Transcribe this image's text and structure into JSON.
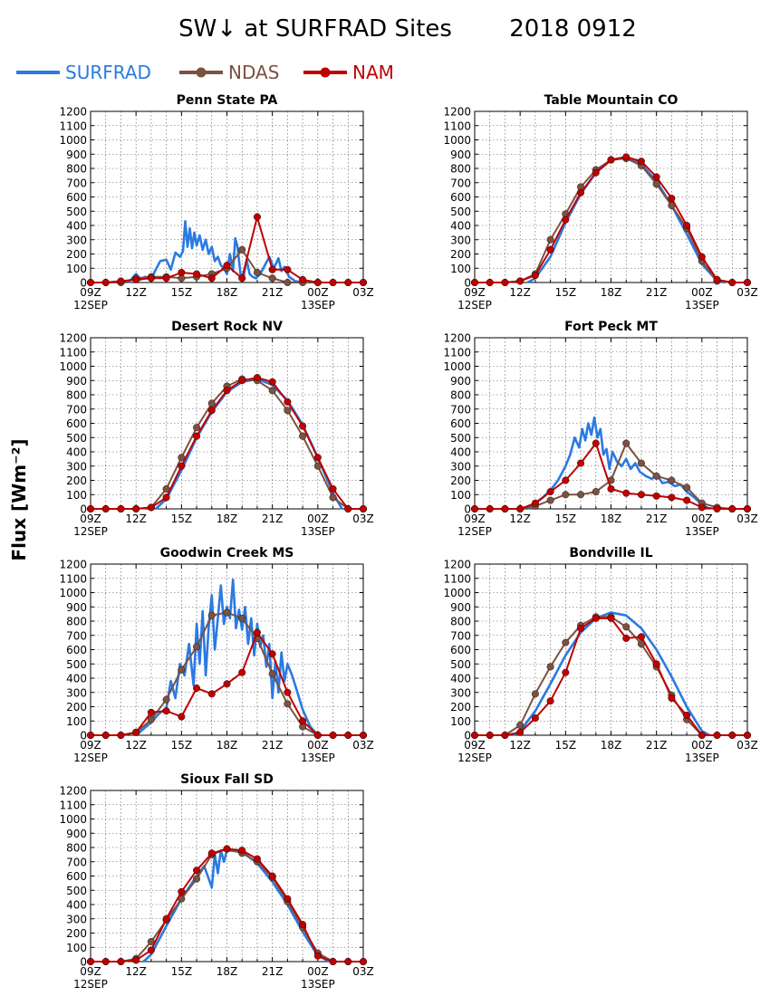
{
  "header": {
    "title": "SW↓ at SURFRAD Sites",
    "date": "2018 0912"
  },
  "y_label": "Flux [Wm⁻²]",
  "legend": [
    {
      "name": "SURFRAD",
      "color": "#2a7ae2",
      "marker": false
    },
    {
      "name": "NDAS",
      "color": "#7b5240",
      "marker": true
    },
    {
      "name": "NAM",
      "color": "#c00000",
      "marker": true
    }
  ],
  "x_ticks": [
    "09Z",
    "12Z",
    "15Z",
    "18Z",
    "21Z",
    "00Z",
    "03Z"
  ],
  "x_subticks": {
    "09Z": "12SEP",
    "00Z": "13SEP"
  },
  "y_ticks": [
    0,
    100,
    200,
    300,
    400,
    500,
    600,
    700,
    800,
    900,
    1000,
    1100,
    1200
  ],
  "chart_data": [
    {
      "type": "line",
      "title": "Penn State PA",
      "xlim": [
        9,
        27
      ],
      "ylim": [
        0,
        1200
      ],
      "x_unit": "hours UTC from 12SEP 00Z",
      "series": [
        {
          "name": "SURFRAD",
          "x": [
            11.5,
            12.0,
            12.3,
            12.6,
            13.0,
            13.3,
            13.6,
            14.0,
            14.3,
            14.6,
            14.9,
            15.1,
            15.25,
            15.4,
            15.55,
            15.7,
            15.85,
            16.0,
            16.2,
            16.4,
            16.6,
            16.8,
            17.0,
            17.2,
            17.4,
            17.6,
            17.8,
            18.0,
            18.2,
            18.4,
            18.55,
            18.7,
            18.9,
            19.1,
            19.3,
            19.5,
            19.7,
            19.9,
            20.2,
            20.5,
            20.8,
            21.1,
            21.4,
            21.6,
            21.8,
            22.1,
            22.5,
            23.0
          ],
          "y": [
            0,
            60,
            20,
            40,
            25,
            90,
            150,
            160,
            90,
            210,
            180,
            220,
            430,
            250,
            380,
            240,
            350,
            260,
            330,
            230,
            300,
            200,
            250,
            150,
            180,
            120,
            100,
            60,
            200,
            80,
            310,
            250,
            60,
            40,
            160,
            60,
            40,
            30,
            60,
            120,
            180,
            100,
            170,
            80,
            110,
            40,
            10,
            0
          ]
        },
        {
          "name": "NDAS",
          "x": [
            9,
            10,
            11,
            12,
            13,
            14,
            15,
            16,
            17,
            18,
            19,
            20,
            21,
            22,
            23,
            24,
            25,
            26,
            27
          ],
          "y": [
            0,
            0,
            0,
            30,
            40,
            40,
            30,
            40,
            60,
            100,
            230,
            70,
            30,
            0,
            0,
            0,
            0,
            0,
            0
          ]
        },
        {
          "name": "NAM",
          "x": [
            9,
            10,
            11,
            12,
            13,
            14,
            15,
            16,
            17,
            18,
            19,
            20,
            21,
            22,
            23,
            24,
            25,
            26,
            27
          ],
          "y": [
            0,
            0,
            10,
            20,
            30,
            30,
            70,
            60,
            30,
            120,
            30,
            460,
            90,
            90,
            20,
            0,
            0,
            0,
            0
          ]
        }
      ]
    },
    {
      "type": "line",
      "title": "Table Mountain CO",
      "xlim": [
        9,
        27
      ],
      "ylim": [
        0,
        1200
      ],
      "x_unit": "hours UTC from 12SEP 00Z",
      "series": [
        {
          "name": "SURFRAD",
          "x": [
            12.5,
            13,
            14,
            15,
            16,
            17,
            18,
            19,
            20,
            21,
            22,
            23,
            24,
            25,
            25.5
          ],
          "y": [
            0,
            30,
            180,
            420,
            620,
            770,
            860,
            880,
            830,
            710,
            540,
            340,
            130,
            10,
            0
          ]
        },
        {
          "name": "NDAS",
          "x": [
            9,
            10,
            11,
            12,
            13,
            14,
            15,
            16,
            17,
            18,
            19,
            20,
            21,
            22,
            23,
            24,
            25,
            26,
            27
          ],
          "y": [
            0,
            0,
            0,
            10,
            60,
            300,
            480,
            670,
            790,
            860,
            870,
            820,
            690,
            540,
            380,
            150,
            10,
            0,
            0
          ]
        },
        {
          "name": "NAM",
          "x": [
            9,
            10,
            11,
            12,
            13,
            14,
            15,
            16,
            17,
            18,
            19,
            20,
            21,
            22,
            23,
            24,
            25,
            26,
            27
          ],
          "y": [
            0,
            0,
            0,
            10,
            50,
            230,
            440,
            630,
            770,
            860,
            880,
            850,
            740,
            590,
            400,
            180,
            20,
            0,
            0
          ]
        }
      ]
    },
    {
      "type": "line",
      "title": "Desert Rock NV",
      "xlim": [
        9,
        27
      ],
      "ylim": [
        0,
        1200
      ],
      "x_unit": "hours UTC from 12SEP 00Z",
      "series": [
        {
          "name": "SURFRAD",
          "x": [
            13.3,
            14,
            15,
            16,
            17,
            18,
            19,
            20,
            21,
            22,
            23,
            24,
            25,
            25.6
          ],
          "y": [
            0,
            70,
            270,
            500,
            680,
            820,
            890,
            910,
            870,
            760,
            590,
            360,
            110,
            0
          ]
        },
        {
          "name": "NDAS",
          "x": [
            9,
            10,
            11,
            12,
            13,
            14,
            15,
            16,
            17,
            18,
            19,
            20,
            21,
            22,
            23,
            24,
            25,
            26,
            27
          ],
          "y": [
            0,
            0,
            0,
            0,
            10,
            140,
            360,
            570,
            740,
            860,
            910,
            900,
            830,
            690,
            510,
            300,
            80,
            0,
            0
          ]
        },
        {
          "name": "NAM",
          "x": [
            9,
            10,
            11,
            12,
            13,
            14,
            15,
            16,
            17,
            18,
            19,
            20,
            21,
            22,
            23,
            24,
            25,
            26,
            27
          ],
          "y": [
            0,
            0,
            0,
            0,
            10,
            80,
            300,
            510,
            690,
            830,
            900,
            920,
            890,
            750,
            580,
            360,
            140,
            0,
            0
          ]
        }
      ]
    },
    {
      "type": "line",
      "title": "Fort Peck MT",
      "xlim": [
        9,
        27
      ],
      "ylim": [
        0,
        1200
      ],
      "x_unit": "hours UTC from 12SEP 00Z",
      "series": [
        {
          "name": "SURFRAD",
          "x": [
            12.5,
            13,
            13.5,
            14,
            14.5,
            15,
            15.3,
            15.6,
            15.9,
            16.1,
            16.3,
            16.5,
            16.7,
            16.9,
            17.1,
            17.3,
            17.5,
            17.7,
            17.9,
            18.1,
            18.4,
            18.7,
            19.0,
            19.3,
            19.6,
            19.9,
            20.3,
            20.7,
            21.0,
            21.4,
            21.8,
            22.2,
            22.6,
            23.0,
            23.5,
            24.0,
            24.5
          ],
          "y": [
            0,
            40,
            80,
            130,
            200,
            300,
            380,
            500,
            430,
            560,
            480,
            600,
            520,
            640,
            500,
            560,
            380,
            420,
            280,
            400,
            330,
            300,
            350,
            280,
            320,
            260,
            230,
            210,
            240,
            180,
            190,
            160,
            170,
            120,
            80,
            30,
            0
          ]
        },
        {
          "name": "NDAS",
          "x": [
            9,
            10,
            11,
            12,
            13,
            14,
            15,
            16,
            17,
            18,
            19,
            20,
            21,
            22,
            23,
            24,
            25,
            26,
            27
          ],
          "y": [
            0,
            0,
            0,
            0,
            20,
            60,
            100,
            100,
            120,
            200,
            460,
            320,
            230,
            200,
            150,
            40,
            10,
            0,
            0
          ]
        },
        {
          "name": "NAM",
          "x": [
            9,
            10,
            11,
            12,
            13,
            14,
            15,
            16,
            17,
            18,
            19,
            20,
            21,
            22,
            23,
            24,
            25,
            26,
            27
          ],
          "y": [
            0,
            0,
            0,
            0,
            40,
            120,
            200,
            320,
            460,
            140,
            110,
            100,
            90,
            80,
            60,
            10,
            0,
            0,
            0
          ]
        }
      ]
    },
    {
      "type": "line",
      "title": "Goodwin Creek MS",
      "xlim": [
        9,
        27
      ],
      "ylim": [
        0,
        1200
      ],
      "x_unit": "hours UTC from 12SEP 00Z",
      "series": [
        {
          "name": "SURFRAD",
          "x": [
            12,
            13,
            13.5,
            14,
            14.3,
            14.6,
            14.9,
            15.2,
            15.5,
            15.8,
            16.0,
            16.2,
            16.4,
            16.6,
            16.8,
            17.0,
            17.2,
            17.4,
            17.6,
            17.8,
            18.0,
            18.2,
            18.4,
            18.6,
            18.8,
            19.0,
            19.2,
            19.4,
            19.6,
            19.8,
            20.0,
            20.2,
            20.4,
            20.6,
            20.8,
            21.0,
            21.2,
            21.4,
            21.6,
            21.8,
            22.0,
            22.3,
            22.6,
            23.0,
            23.5,
            24.0
          ],
          "y": [
            0,
            90,
            150,
            190,
            380,
            260,
            500,
            420,
            640,
            350,
            780,
            500,
            870,
            420,
            760,
            980,
            600,
            820,
            1050,
            780,
            900,
            820,
            1090,
            750,
            880,
            740,
            900,
            640,
            820,
            560,
            780,
            620,
            700,
            480,
            640,
            260,
            520,
            300,
            580,
            380,
            500,
            420,
            320,
            180,
            60,
            0
          ]
        },
        {
          "name": "NDAS",
          "x": [
            9,
            10,
            11,
            12,
            13,
            14,
            15,
            16,
            17,
            18,
            19,
            20,
            21,
            22,
            23,
            24,
            25,
            26,
            27
          ],
          "y": [
            0,
            0,
            0,
            20,
            110,
            250,
            460,
            620,
            840,
            860,
            820,
            680,
            430,
            220,
            60,
            0,
            0,
            0,
            0
          ]
        },
        {
          "name": "NAM",
          "x": [
            9,
            10,
            11,
            12,
            13,
            14,
            15,
            16,
            17,
            18,
            19,
            20,
            21,
            22,
            23,
            24,
            25,
            26,
            27
          ],
          "y": [
            0,
            0,
            0,
            20,
            160,
            170,
            130,
            330,
            290,
            360,
            440,
            720,
            570,
            300,
            100,
            0,
            0,
            0,
            0
          ]
        }
      ]
    },
    {
      "type": "line",
      "title": "Bondville IL",
      "xlim": [
        9,
        27
      ],
      "ylim": [
        0,
        1200
      ],
      "x_unit": "hours UTC from 12SEP 00Z",
      "series": [
        {
          "name": "SURFRAD",
          "x": [
            11.5,
            12,
            13,
            14,
            15,
            16,
            17,
            18,
            19,
            20,
            21,
            22,
            23,
            24,
            24.5
          ],
          "y": [
            0,
            30,
            170,
            360,
            560,
            720,
            820,
            860,
            840,
            750,
            600,
            410,
            200,
            30,
            0
          ]
        },
        {
          "name": "NDAS",
          "x": [
            9,
            10,
            11,
            12,
            13,
            14,
            15,
            16,
            17,
            18,
            19,
            20,
            21,
            22,
            23,
            24,
            25,
            26,
            27
          ],
          "y": [
            0,
            0,
            0,
            70,
            290,
            480,
            650,
            770,
            830,
            830,
            760,
            640,
            480,
            280,
            110,
            0,
            0,
            0,
            0
          ]
        },
        {
          "name": "NAM",
          "x": [
            9,
            10,
            11,
            12,
            13,
            14,
            15,
            16,
            17,
            18,
            19,
            20,
            21,
            22,
            23,
            24,
            25,
            26,
            27
          ],
          "y": [
            0,
            0,
            0,
            20,
            120,
            240,
            440,
            750,
            820,
            820,
            680,
            690,
            500,
            260,
            140,
            0,
            0,
            0,
            0
          ]
        }
      ]
    },
    {
      "type": "line",
      "title": "Sioux Fall SD",
      "xlim": [
        9,
        27
      ],
      "ylim": [
        0,
        1200
      ],
      "x_unit": "hours UTC from 12SEP 00Z",
      "series": [
        {
          "name": "SURFRAD",
          "x": [
            12.5,
            13,
            14,
            15,
            16,
            16.5,
            17,
            17.2,
            17.4,
            17.6,
            17.8,
            18,
            19,
            20,
            21,
            22,
            23,
            24,
            24.8
          ],
          "y": [
            0,
            50,
            250,
            440,
            600,
            670,
            520,
            750,
            620,
            780,
            700,
            780,
            770,
            690,
            560,
            400,
            210,
            40,
            0
          ]
        },
        {
          "name": "NDAS",
          "x": [
            9,
            10,
            11,
            12,
            13,
            14,
            15,
            16,
            17,
            18,
            19,
            20,
            21,
            22,
            23,
            24,
            25,
            26,
            27
          ],
          "y": [
            0,
            0,
            0,
            20,
            140,
            290,
            440,
            580,
            750,
            790,
            760,
            700,
            590,
            420,
            240,
            60,
            0,
            0,
            0
          ]
        },
        {
          "name": "NAM",
          "x": [
            9,
            10,
            11,
            12,
            13,
            14,
            15,
            16,
            17,
            18,
            19,
            20,
            21,
            22,
            23,
            24,
            25,
            26,
            27
          ],
          "y": [
            0,
            0,
            0,
            10,
            80,
            300,
            490,
            640,
            760,
            790,
            780,
            720,
            600,
            440,
            260,
            40,
            0,
            0,
            0
          ]
        }
      ]
    }
  ]
}
